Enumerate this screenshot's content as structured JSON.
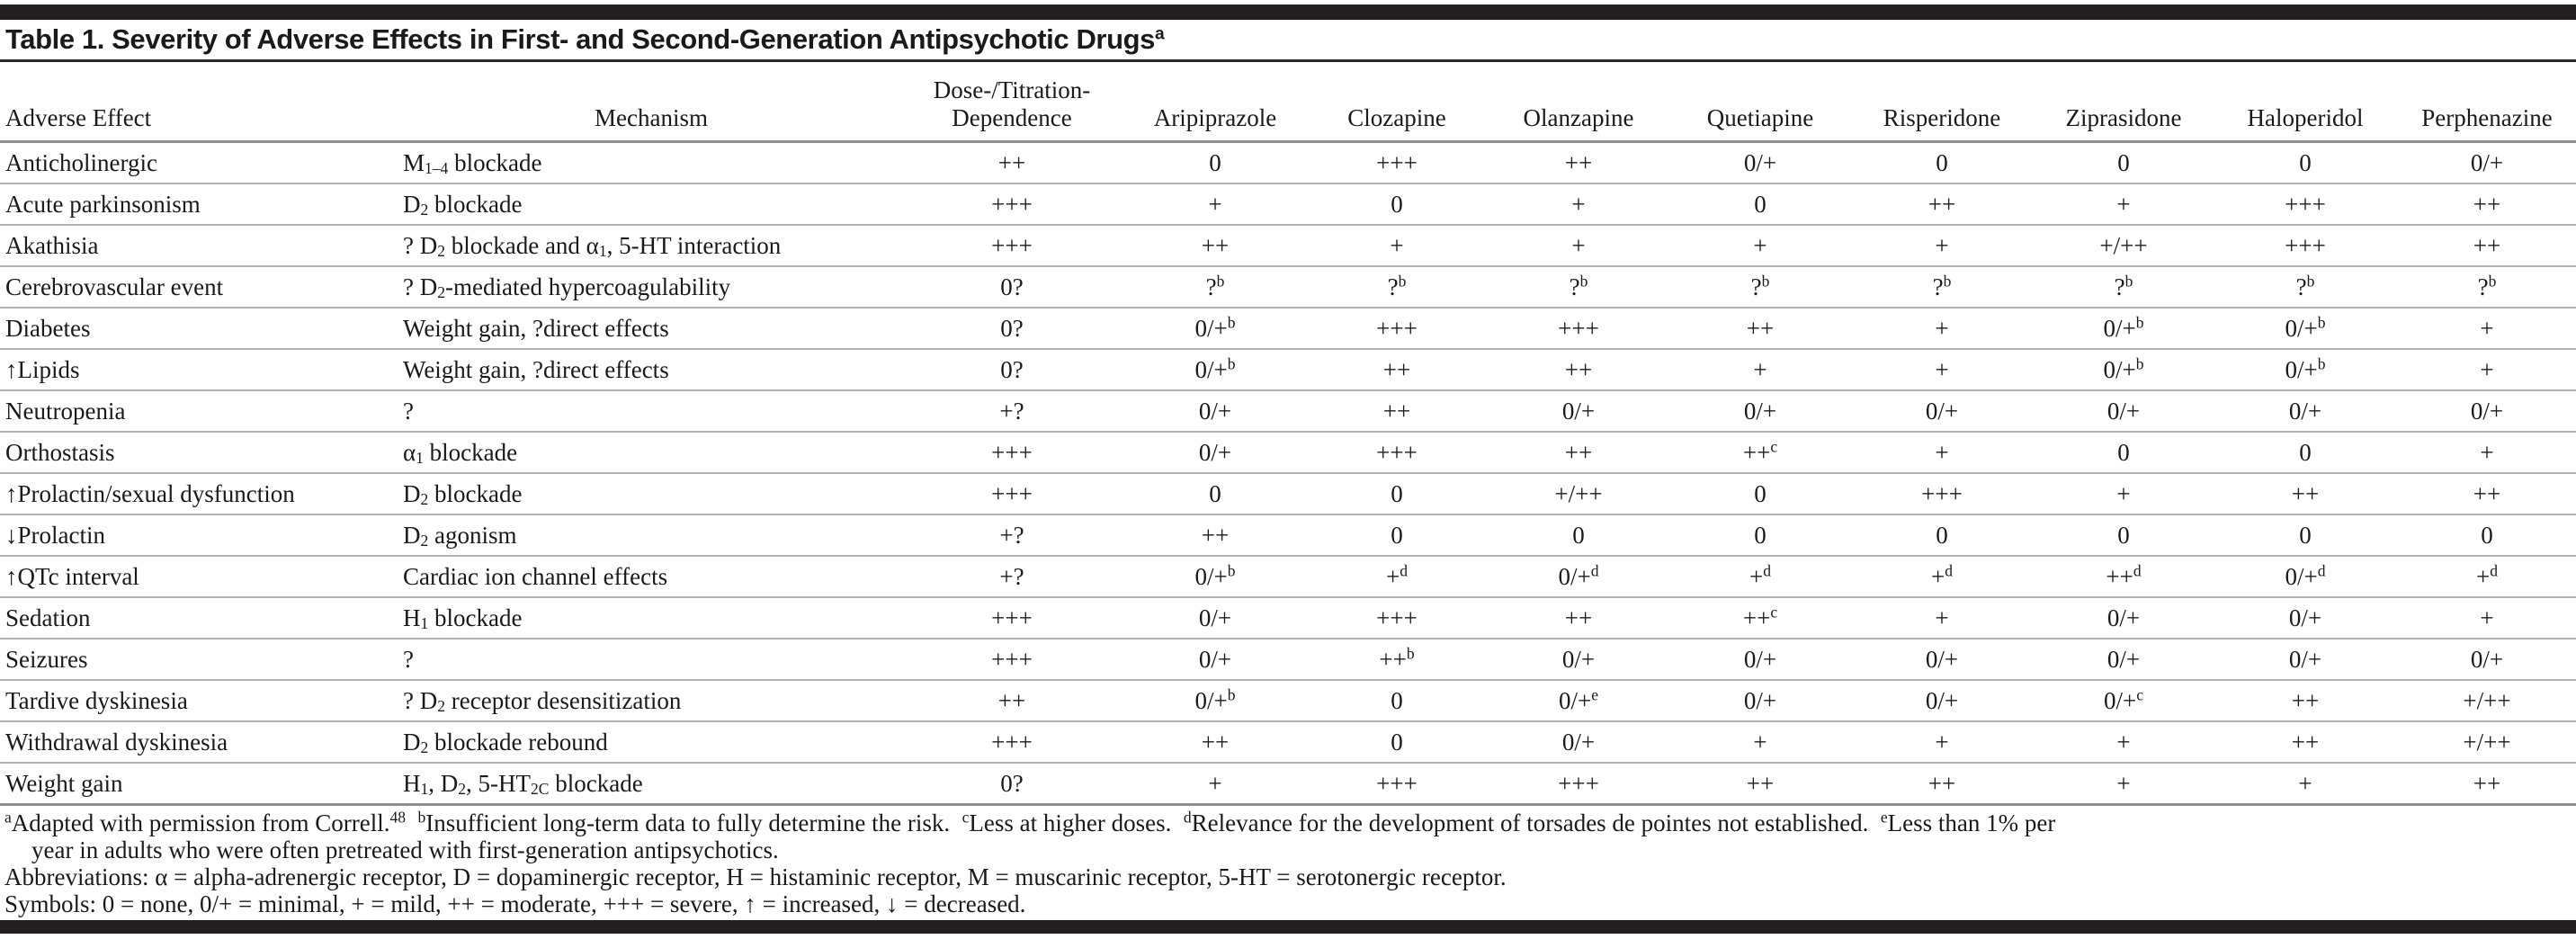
{
  "colors": {
    "bar": "#231f20",
    "rule_dark": "#2a2a2a",
    "rule_mid": "#8f8f8f",
    "rule_light": "#b3b3b3",
    "ink": "#1a1a1a",
    "bg": "#ffffff"
  },
  "title": {
    "text": "Table 1. Severity of Adverse Effects in First- and Second-Generation Antipsychotic Drugs",
    "sup": "a"
  },
  "table": {
    "columns": [
      {
        "label": "Adverse Effect"
      },
      {
        "label": "Mechanism"
      },
      {
        "label": "Dose-/Titration-\nDependence"
      },
      {
        "label": "Aripiprazole"
      },
      {
        "label": "Clozapine"
      },
      {
        "label": "Olanzapine"
      },
      {
        "label": "Quetiapine"
      },
      {
        "label": "Risperidone"
      },
      {
        "label": "Ziprasidone"
      },
      {
        "label": "Haloperidol"
      },
      {
        "label": "Perphenazine"
      }
    ],
    "rows": [
      {
        "effect": "Anticholinergic",
        "mechanism": "M~1–4~ blockade",
        "values": [
          "++",
          "0",
          "+++",
          "++",
          "0/+",
          "0",
          "0",
          "0",
          "0/+"
        ]
      },
      {
        "effect": "Acute parkinsonism",
        "mechanism": "D~2~ blockade",
        "values": [
          "+++",
          "+",
          "0",
          "+",
          "0",
          "++",
          "+",
          "+++",
          "++"
        ]
      },
      {
        "effect": "Akathisia",
        "mechanism": "? D~2~ blockade and α~1~, 5-HT interaction",
        "values": [
          "+++",
          "++",
          "+",
          "+",
          "+",
          "+",
          "+/++",
          "+++",
          "++"
        ]
      },
      {
        "effect": "Cerebrovascular event",
        "mechanism": "? D~2~-mediated hypercoagulability",
        "values": [
          "0?",
          "?^b^",
          "?^b^",
          "?^b^",
          "?^b^",
          "?^b^",
          "?^b^",
          "?^b^",
          "?^b^"
        ]
      },
      {
        "effect": "Diabetes",
        "mechanism": "Weight gain, ?direct effects",
        "values": [
          "0?",
          "0/+^b^",
          "+++",
          "+++",
          "++",
          "+",
          "0/+^b^",
          "0/+^b^",
          "+"
        ]
      },
      {
        "effect": "↑Lipids",
        "mechanism": "Weight gain, ?direct effects",
        "values": [
          "0?",
          "0/+^b^",
          "++",
          "++",
          "+",
          "+",
          "0/+^b^",
          "0/+^b^",
          "+"
        ]
      },
      {
        "effect": "Neutropenia",
        "mechanism": "?",
        "values": [
          "+?",
          "0/+",
          "++",
          "0/+",
          "0/+",
          "0/+",
          "0/+",
          "0/+",
          "0/+"
        ]
      },
      {
        "effect": "Orthostasis",
        "mechanism": "α~1~ blockade",
        "values": [
          "+++",
          "0/+",
          "+++",
          "++",
          "++^c^",
          "+",
          "0",
          "0",
          "+"
        ]
      },
      {
        "effect": "↑Prolactin/sexual dysfunction",
        "mechanism": "D~2~ blockade",
        "values": [
          "+++",
          "0",
          "0",
          "+/++",
          "0",
          "+++",
          "+",
          "++",
          "++"
        ]
      },
      {
        "effect": "↓Prolactin",
        "mechanism": "D~2~ agonism",
        "values": [
          "+?",
          "++",
          "0",
          "0",
          "0",
          "0",
          "0",
          "0",
          "0"
        ]
      },
      {
        "effect": "↑QTc interval",
        "mechanism": "Cardiac ion channel effects",
        "values": [
          "+?",
          "0/+^b^",
          "+^d^",
          "0/+^d^",
          "+^d^",
          "+^d^",
          "++^d^",
          "0/+^d^",
          "+^d^"
        ]
      },
      {
        "effect": "Sedation",
        "mechanism": "H~1~ blockade",
        "values": [
          "+++",
          "0/+",
          "+++",
          "++",
          "++^c^",
          "+",
          "0/+",
          "0/+",
          "+"
        ]
      },
      {
        "effect": "Seizures",
        "mechanism": "?",
        "values": [
          "+++",
          "0/+",
          "++^b^",
          "0/+",
          "0/+",
          "0/+",
          "0/+",
          "0/+",
          "0/+"
        ]
      },
      {
        "effect": "Tardive dyskinesia",
        "mechanism": "? D~2~ receptor desensitization",
        "values": [
          "++",
          "0/+^b^",
          "0",
          "0/+^e^",
          "0/+",
          "0/+",
          "0/+^c^",
          "++",
          "+/++"
        ]
      },
      {
        "effect": "Withdrawal dyskinesia",
        "mechanism": "D~2~ blockade rebound",
        "values": [
          "+++",
          "++",
          "0",
          "0/+",
          "+",
          "+",
          "+",
          "++",
          "+/++"
        ]
      },
      {
        "effect": "Weight gain",
        "mechanism": "H~1~, D~2~, 5-HT~2C~ blockade",
        "values": [
          "0?",
          "+",
          "+++",
          "+++",
          "++",
          "++",
          "+",
          "+",
          "++"
        ]
      }
    ]
  },
  "footnotes": [
    {
      "text": "^a^Adapted with permission from Correll.^48^  ^b^Insufficient long-term data to fully determine the risk.  ^c^Less at higher doses.  ^d^Relevance for the development of torsades de pointes not established.  ^e^Less than 1% per\nyear in adults who were often pretreated with first-generation antipsychotics."
    },
    {
      "text": "Abbreviations: α = alpha-adrenergic receptor, D = dopaminergic receptor, H = histaminic receptor, M = muscarinic receptor, 5-HT = serotonergic receptor."
    },
    {
      "text": "Symbols: 0 = none, 0/+ = minimal, + = mild, ++ = moderate, +++ = severe, ↑ = increased, ↓ = decreased."
    }
  ]
}
